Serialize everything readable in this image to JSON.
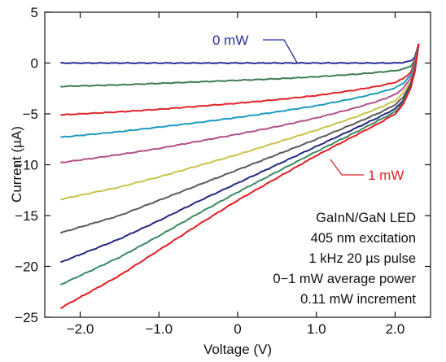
{
  "chart_data": {
    "type": "line",
    "xlabel": "Voltage (V)",
    "ylabel": "Current (µA)",
    "xlim": [
      -2.45,
      2.45
    ],
    "ylim": [
      -25,
      5
    ],
    "x_ticks": [
      -2.0,
      -1.0,
      0.0,
      1.0,
      2.0
    ],
    "x_tick_labels": [
      "−2.0",
      "−1.0",
      "0",
      "1.0",
      "2.0"
    ],
    "y_ticks": [
      5,
      0,
      -5,
      -10,
      -15,
      -20,
      -25
    ],
    "y_tick_labels": [
      "5",
      "0",
      "−5",
      "−10",
      "−15",
      "−20",
      "−25"
    ],
    "grid": false,
    "x_sample": [
      -2.25,
      -1.5,
      -1.0,
      -0.5,
      0.0,
      0.5,
      1.0,
      1.5,
      1.8,
      2.0,
      2.1,
      2.2,
      2.25,
      2.3
    ],
    "series": [
      {
        "color": "#2b2e9a",
        "values": [
          0.0,
          0.0,
          0.0,
          0.0,
          0.0,
          0.0,
          0.0,
          0.0,
          0.0,
          0.0,
          0.05,
          0.2,
          0.6,
          1.9
        ]
      },
      {
        "color": "#3f7d52",
        "values": [
          -2.3,
          -2.15,
          -2.0,
          -1.85,
          -1.7,
          -1.55,
          -1.35,
          -1.1,
          -0.9,
          -0.75,
          -0.6,
          -0.3,
          0.3,
          1.9
        ]
      },
      {
        "color": "#e0242a",
        "values": [
          -5.1,
          -4.8,
          -4.55,
          -4.25,
          -3.95,
          -3.6,
          -3.2,
          -2.65,
          -2.25,
          -1.9,
          -1.55,
          -0.9,
          0.1,
          1.9
        ]
      },
      {
        "color": "#1c9bbf",
        "values": [
          -7.3,
          -6.75,
          -6.3,
          -5.85,
          -5.35,
          -4.8,
          -4.2,
          -3.45,
          -2.9,
          -2.45,
          -2.0,
          -1.2,
          -0.1,
          1.9
        ]
      },
      {
        "color": "#b3508a",
        "values": [
          -9.8,
          -9.0,
          -8.4,
          -7.7,
          -7.0,
          -6.25,
          -5.4,
          -4.4,
          -3.7,
          -3.1,
          -2.5,
          -1.5,
          -0.3,
          1.9
        ]
      },
      {
        "color": "#c9c34a",
        "values": [
          -13.4,
          -12.2,
          -11.2,
          -10.1,
          -9.0,
          -7.8,
          -6.6,
          -5.3,
          -4.4,
          -3.7,
          -3.0,
          -1.8,
          -0.5,
          1.9
        ]
      },
      {
        "color": "#5a5a5a",
        "values": [
          -16.7,
          -15.0,
          -13.5,
          -12.0,
          -10.5,
          -9.0,
          -7.5,
          -5.9,
          -4.9,
          -4.1,
          -3.4,
          -2.0,
          -0.6,
          1.9
        ]
      },
      {
        "color": "#27287e",
        "values": [
          -19.6,
          -17.3,
          -15.5,
          -13.6,
          -11.8,
          -10.0,
          -8.2,
          -6.4,
          -5.3,
          -4.5,
          -3.7,
          -2.2,
          -0.7,
          1.9
        ]
      },
      {
        "color": "#3a8a5f",
        "values": [
          -21.8,
          -19.1,
          -17.0,
          -14.8,
          -12.7,
          -10.7,
          -8.7,
          -6.8,
          -5.6,
          -4.8,
          -3.9,
          -2.3,
          -0.8,
          1.9
        ]
      },
      {
        "color": "#e21d23",
        "values": [
          -24.1,
          -20.9,
          -18.4,
          -15.9,
          -13.5,
          -11.3,
          -9.1,
          -7.1,
          -5.9,
          -5.0,
          -4.1,
          -2.4,
          -0.9,
          1.9
        ]
      }
    ],
    "annotations": [
      {
        "text": "0 mW",
        "color": "#2b2e9a"
      },
      {
        "text": "1 mW",
        "color": "#e0242a"
      }
    ],
    "note_lines": [
      "GaInN/GaN LED",
      "405 nm excitation",
      "1 kHz 20 µs pulse",
      "0−1 mW average power",
      "0.11 mW increment"
    ]
  }
}
